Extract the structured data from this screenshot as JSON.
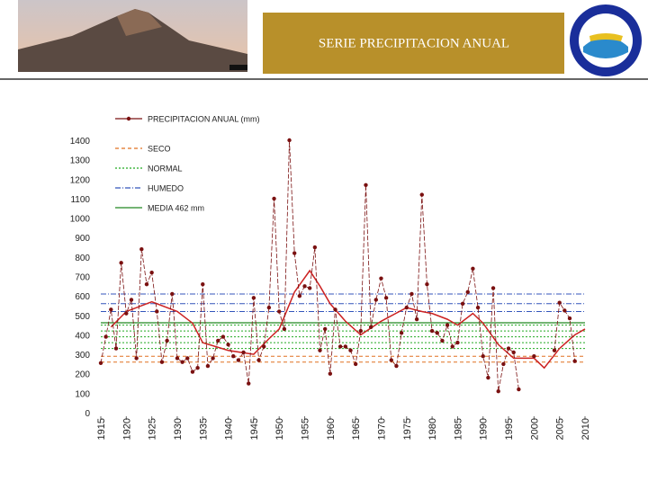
{
  "chart_data": {
    "type": "line",
    "title": "SERIE PRECIPITACION ANUAL",
    "xlim": [
      1915,
      2010
    ],
    "xticks": [
      1915,
      1920,
      1925,
      1930,
      1935,
      1940,
      1945,
      1950,
      1955,
      1960,
      1965,
      1970,
      1975,
      1980,
      1985,
      1990,
      1995,
      2000,
      2005,
      2010
    ],
    "ylim": [
      0,
      1400
    ],
    "yticks": [
      0,
      100,
      200,
      300,
      400,
      500,
      600,
      700,
      800,
      900,
      1000,
      1100,
      1200,
      1300,
      1400
    ],
    "x": [
      1915,
      1916,
      1917,
      1918,
      1919,
      1920,
      1921,
      1922,
      1923,
      1924,
      1925,
      1926,
      1927,
      1928,
      1929,
      1930,
      1931,
      1932,
      1933,
      1934,
      1935,
      1936,
      1937,
      1938,
      1939,
      1940,
      1941,
      1942,
      1943,
      1944,
      1945,
      1946,
      1947,
      1948,
      1949,
      1950,
      1951,
      1952,
      1953,
      1954,
      1955,
      1956,
      1957,
      1958,
      1959,
      1960,
      1961,
      1962,
      1963,
      1964,
      1965,
      1966,
      1967,
      1968,
      1969,
      1970,
      1971,
      1972,
      1973,
      1974,
      1975,
      1976,
      1977,
      1978,
      1979,
      1980,
      1981,
      1982,
      1983,
      1984,
      1985,
      1986,
      1987,
      1988,
      1989,
      1990,
      1991,
      1992,
      1993,
      1994,
      1995,
      1996,
      1997,
      1998,
      1999,
      2000,
      2001,
      2002,
      2003,
      2004,
      2005,
      2006,
      2007,
      2008
    ],
    "series": [
      {
        "name": "PRECIPITACION ANUAL (mm)",
        "color": "#7a1010",
        "values": [
          255,
          390,
          530,
          330,
          770,
          510,
          580,
          280,
          840,
          660,
          720,
          520,
          260,
          370,
          610,
          280,
          260,
          280,
          210,
          230,
          660,
          240,
          280,
          370,
          390,
          350,
          290,
          270,
          310,
          150,
          590,
          270,
          340,
          540,
          1100,
          520,
          430,
          1400,
          820,
          600,
          650,
          640,
          850,
          320,
          430,
          200,
          530,
          340,
          340,
          320,
          250,
          420,
          1170,
          440,
          580,
          690,
          590,
          270,
          240,
          410,
          540,
          610,
          480,
          1120,
          660,
          420,
          410,
          370,
          450,
          340,
          360,
          560,
          620,
          740,
          540,
          290,
          180,
          640,
          110,
          250,
          330,
          310,
          120,
          null,
          null,
          290,
          null,
          null,
          null,
          320,
          565,
          525,
          485,
          265
        ]
      }
    ],
    "trend": {
      "color": "#cc2222",
      "x": [
        1917,
        1920,
        1925,
        1930,
        1933,
        1935,
        1940,
        1945,
        1948,
        1950,
        1953,
        1956,
        1958,
        1960,
        1963,
        1966,
        1970,
        1975,
        1978,
        1980,
        1983,
        1985,
        1988,
        1990,
        1993,
        1996,
        2000,
        2002,
        2005,
        2008,
        2010
      ],
      "values": [
        440,
        520,
        570,
        520,
        460,
        360,
        320,
        300,
        380,
        430,
        620,
        730,
        650,
        560,
        470,
        400,
        470,
        540,
        520,
        510,
        480,
        450,
        510,
        460,
        350,
        280,
        280,
        230,
        330,
        400,
        430
      ]
    },
    "references": [
      {
        "name": "SECO",
        "color": "#e07020",
        "dash": "4,3",
        "values": [
          260,
          290
        ]
      },
      {
        "name": "NORMAL",
        "color": "#22aa22",
        "dash": "2,2",
        "values": [
          330,
          360,
          390,
          420,
          450
        ]
      },
      {
        "name": "HUMEDO",
        "color": "#3355bb",
        "dash": "6,2,1,2",
        "values": [
          520,
          560,
          610
        ]
      },
      {
        "name": "MEDIA 462 mm",
        "color": "#228822",
        "dash": "",
        "values": [
          462
        ]
      }
    ]
  }
}
